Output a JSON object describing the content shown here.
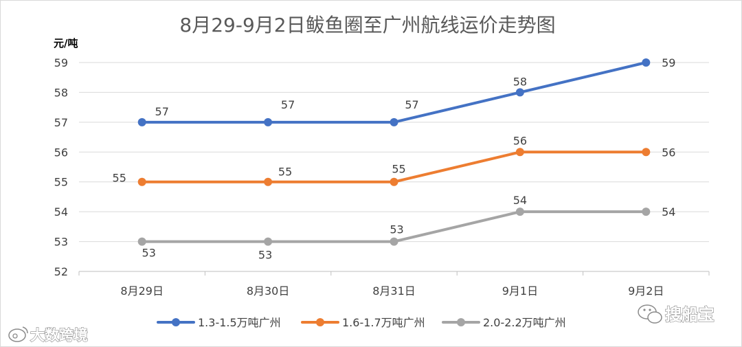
{
  "chart_data": {
    "type": "line",
    "title": "8月29-9月2日鲅鱼圈至广州航线运价走势图",
    "ylabel": "元/吨",
    "xlabel": "",
    "categories": [
      "8月29日",
      "8月30日",
      "8月31日",
      "9月1日",
      "9月2日"
    ],
    "ylim": [
      52,
      59
    ],
    "yticks": [
      52,
      53,
      54,
      55,
      56,
      57,
      58,
      59
    ],
    "grid": true,
    "legend_position": "bottom",
    "series": [
      {
        "name": "1.3-1.5万吨广州",
        "color": "#4472c4",
        "values": [
          57,
          57,
          57,
          58,
          59
        ]
      },
      {
        "name": "1.6-1.7万吨广州",
        "color": "#ed7d31",
        "values": [
          55,
          55,
          55,
          56,
          56
        ]
      },
      {
        "name": "2.0-2.2万吨广州",
        "color": "#a5a5a5",
        "values": [
          53,
          53,
          53,
          54,
          54
        ]
      }
    ]
  },
  "watermarks": {
    "left": "大数跨境",
    "right": "搜船宝",
    "left_icon": "weibo-icon",
    "right_icon": "wechat-icon"
  }
}
